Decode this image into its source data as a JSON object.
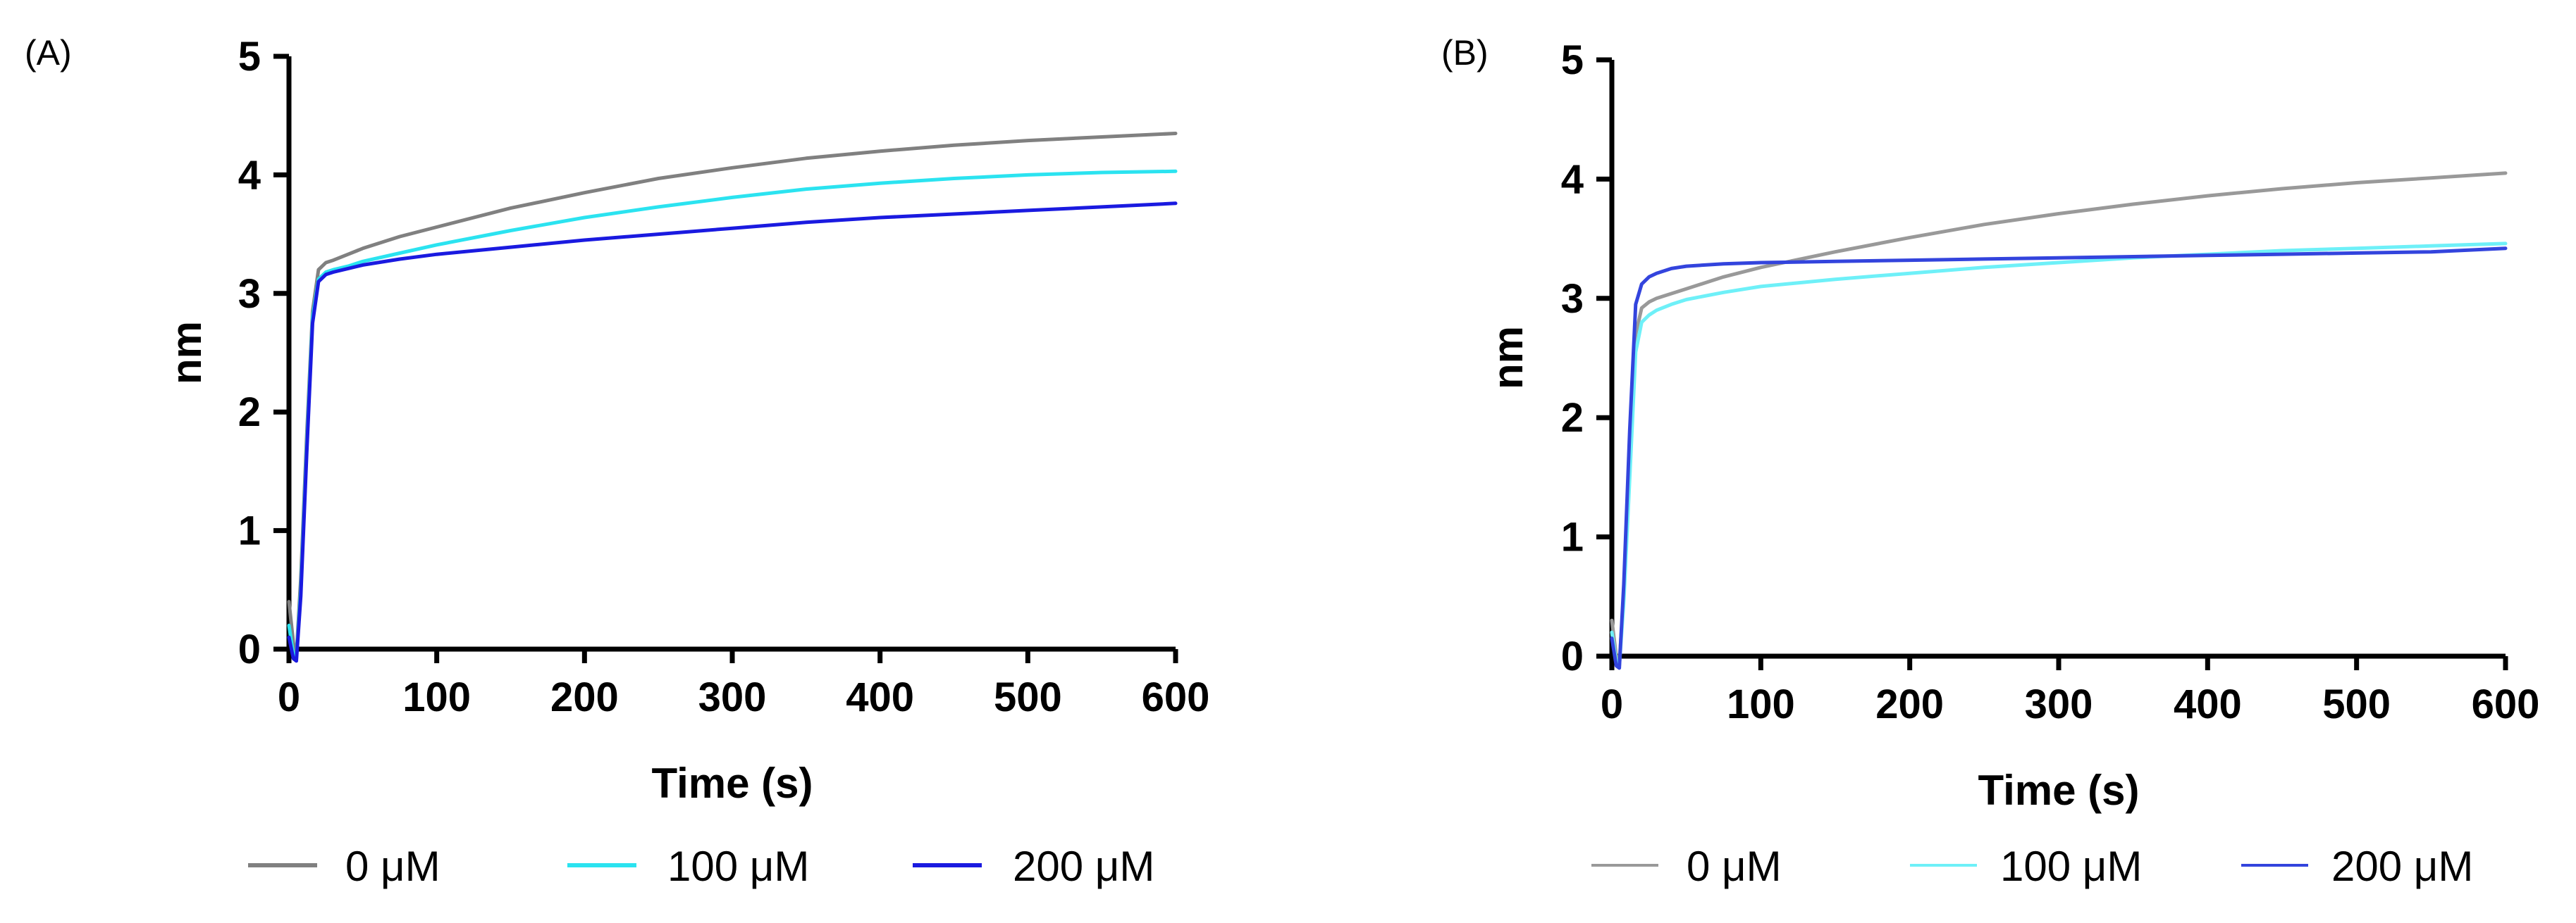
{
  "chart_data": [
    {
      "type": "line",
      "panel_label": "(A)",
      "xlabel": "Time (s)",
      "ylabel": "nm",
      "xlim": [
        0,
        600
      ],
      "ylim": [
        0,
        5
      ],
      "xticks": [
        0,
        100,
        200,
        300,
        400,
        500,
        600
      ],
      "yticks": [
        0,
        1,
        2,
        3,
        4,
        5
      ],
      "xtick_labels": [
        "0",
        "100",
        "200",
        "300",
        "400",
        "500",
        "600"
      ],
      "ytick_labels": [
        "0",
        "1",
        "2",
        "3",
        "4",
        "5"
      ],
      "legend_position": "bottom",
      "grid": false,
      "series": [
        {
          "name": "0 μM",
          "color": "#808080",
          "x": [
            0,
            3,
            5,
            8,
            12,
            16,
            20,
            25,
            30,
            40,
            50,
            75,
            100,
            150,
            200,
            250,
            300,
            350,
            400,
            450,
            500,
            550,
            600
          ],
          "y": [
            0.4,
            0.05,
            -0.05,
            0.6,
            1.8,
            2.85,
            3.2,
            3.26,
            3.28,
            3.33,
            3.38,
            3.48,
            3.56,
            3.72,
            3.85,
            3.97,
            4.06,
            4.14,
            4.2,
            4.25,
            4.29,
            4.32,
            4.35
          ]
        },
        {
          "name": "100 μM",
          "color": "#2be3f0",
          "x": [
            0,
            3,
            5,
            8,
            12,
            16,
            20,
            25,
            30,
            40,
            50,
            75,
            100,
            150,
            200,
            250,
            300,
            350,
            400,
            450,
            500,
            550,
            600
          ],
          "y": [
            0.2,
            -0.05,
            -0.08,
            0.5,
            1.7,
            2.8,
            3.12,
            3.18,
            3.2,
            3.23,
            3.27,
            3.34,
            3.41,
            3.53,
            3.64,
            3.73,
            3.81,
            3.88,
            3.93,
            3.97,
            4.0,
            4.02,
            4.03
          ]
        },
        {
          "name": "200 μM",
          "color": "#1a1ae0",
          "x": [
            0,
            3,
            5,
            8,
            12,
            16,
            20,
            25,
            30,
            40,
            50,
            75,
            100,
            150,
            200,
            250,
            300,
            350,
            400,
            450,
            500,
            550,
            600
          ],
          "y": [
            0.1,
            -0.08,
            -0.1,
            0.45,
            1.65,
            2.75,
            3.1,
            3.16,
            3.18,
            3.21,
            3.24,
            3.29,
            3.33,
            3.39,
            3.45,
            3.5,
            3.55,
            3.6,
            3.64,
            3.67,
            3.7,
            3.73,
            3.76
          ]
        }
      ]
    },
    {
      "type": "line",
      "panel_label": "(B)",
      "xlabel": "Time (s)",
      "ylabel": "nm",
      "xlim": [
        0,
        600
      ],
      "ylim": [
        0,
        5
      ],
      "xticks": [
        0,
        100,
        200,
        300,
        400,
        500,
        600
      ],
      "yticks": [
        0,
        1,
        2,
        3,
        4,
        5
      ],
      "xtick_labels": [
        "0",
        "100",
        "200",
        "300",
        "400",
        "500",
        "600"
      ],
      "ytick_labels": [
        "0",
        "1",
        "2",
        "3",
        "4",
        "5"
      ],
      "legend_position": "bottom",
      "grid": false,
      "series": [
        {
          "name": "0 μM",
          "color": "#999999",
          "x": [
            0,
            3,
            5,
            8,
            12,
            16,
            20,
            25,
            30,
            40,
            50,
            75,
            100,
            150,
            200,
            250,
            300,
            350,
            400,
            450,
            500,
            550,
            600
          ],
          "y": [
            0.3,
            0.0,
            -0.05,
            0.5,
            1.6,
            2.7,
            2.92,
            2.97,
            3.0,
            3.04,
            3.08,
            3.18,
            3.26,
            3.39,
            3.51,
            3.62,
            3.71,
            3.79,
            3.86,
            3.92,
            3.97,
            4.01,
            4.05
          ]
        },
        {
          "name": "100 μM",
          "color": "#6ef0f8",
          "x": [
            0,
            3,
            5,
            8,
            12,
            16,
            20,
            25,
            30,
            40,
            50,
            75,
            100,
            150,
            200,
            250,
            300,
            350,
            400,
            450,
            500,
            550,
            600
          ],
          "y": [
            0.2,
            -0.05,
            -0.08,
            0.45,
            1.5,
            2.55,
            2.8,
            2.86,
            2.9,
            2.95,
            2.99,
            3.05,
            3.1,
            3.16,
            3.21,
            3.26,
            3.3,
            3.34,
            3.37,
            3.4,
            3.42,
            3.44,
            3.46
          ]
        },
        {
          "name": "200 μM",
          "color": "#3344dd",
          "x": [
            0,
            3,
            5,
            8,
            12,
            16,
            20,
            25,
            30,
            40,
            50,
            75,
            100,
            150,
            200,
            250,
            300,
            350,
            400,
            450,
            500,
            550,
            600
          ],
          "y": [
            0.15,
            -0.08,
            -0.1,
            0.6,
            1.9,
            2.95,
            3.12,
            3.18,
            3.21,
            3.25,
            3.27,
            3.29,
            3.3,
            3.31,
            3.32,
            3.33,
            3.34,
            3.35,
            3.36,
            3.37,
            3.38,
            3.39,
            3.42
          ]
        }
      ]
    }
  ]
}
